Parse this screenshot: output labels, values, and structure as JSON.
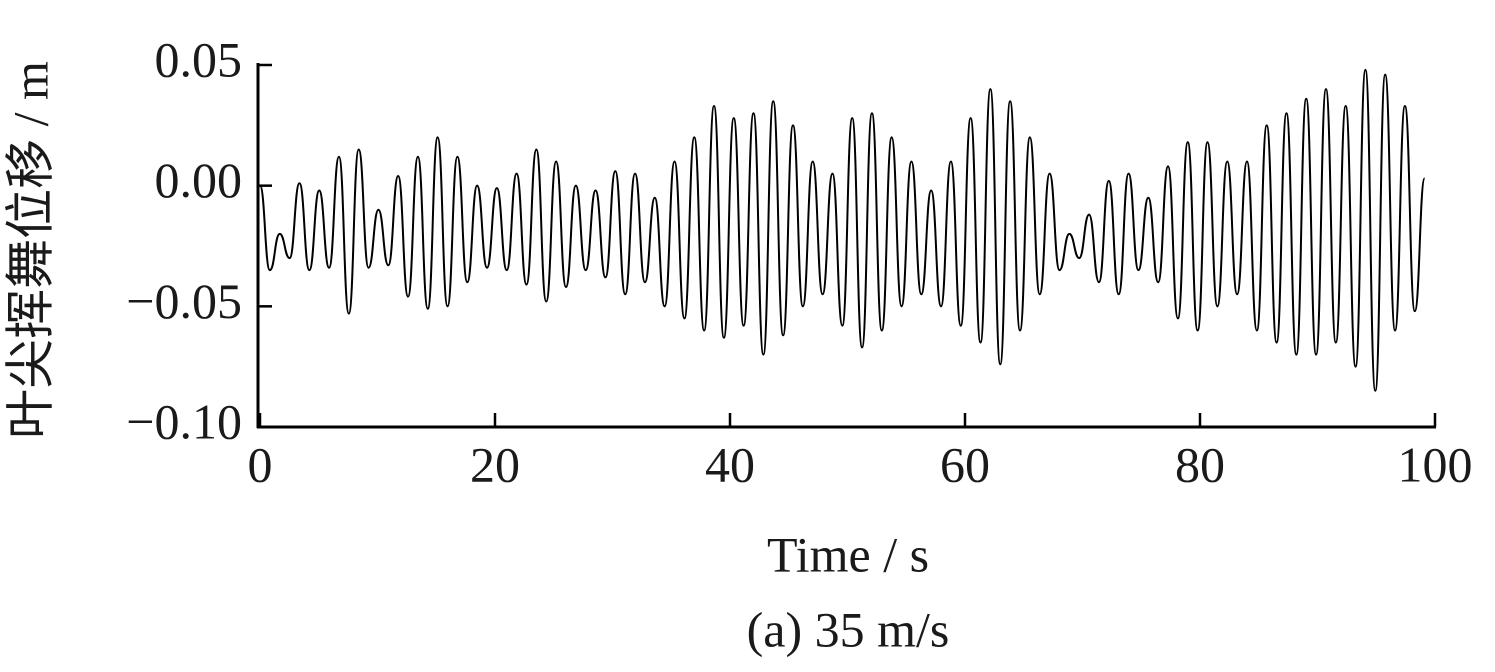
{
  "chart_data": {
    "type": "line",
    "ylabel": "叶尖挥舞位移 / m",
    "xlabel": "Time / s",
    "caption": "(a) 35 m/s",
    "color": "#000000",
    "xlim": [
      0,
      100
    ],
    "xticks": [
      0,
      20,
      40,
      60,
      80,
      100
    ],
    "ylim": [
      -0.1,
      0.05
    ],
    "yticks": [
      {
        "value": -0.1,
        "label": "−0.10"
      },
      {
        "value": -0.05,
        "label": "−0.05"
      },
      {
        "value": 0,
        "label": "0.00"
      },
      0.05
    ],
    "x": [
      0,
      0.84,
      1.68,
      2.52,
      3.36,
      4.2,
      5.04,
      5.88,
      6.72,
      7.56,
      8.4,
      9.24,
      10.08,
      10.92,
      11.76,
      12.6,
      13.44,
      14.28,
      15.12,
      15.96,
      16.8,
      17.64,
      18.48,
      19.32,
      20.16,
      21,
      21.84,
      22.68,
      23.52,
      24.36,
      25.2,
      26.04,
      26.88,
      27.72,
      28.56,
      29.4,
      30.24,
      31.08,
      31.92,
      32.76,
      33.6,
      34.44,
      35.28,
      36.12,
      36.96,
      37.8,
      38.64,
      39.48,
      40.32,
      41.16,
      42,
      42.84,
      43.68,
      44.52,
      45.36,
      46.2,
      47.04,
      47.88,
      48.72,
      49.56,
      50.4,
      51.24,
      52.08,
      52.92,
      53.76,
      54.6,
      55.44,
      56.28,
      57.12,
      57.96,
      58.8,
      59.64,
      60.48,
      61.32,
      62.16,
      63,
      63.84,
      64.68,
      65.52,
      66.36,
      67.2,
      68.04,
      68.88,
      69.72,
      70.56,
      71.4,
      72.24,
      73.08,
      73.92,
      74.76,
      75.6,
      76.44,
      77.28,
      78.12,
      78.96,
      79.8,
      80.64,
      81.48,
      82.32,
      83.16,
      84,
      84.84,
      85.68,
      86.52,
      87.36,
      88.2,
      89.04,
      89.88,
      90.72,
      91.56,
      92.4,
      93.24,
      94.08,
      94.92,
      95.76,
      96.6,
      97.44,
      98.28,
      99.12
    ],
    "values": [
      0,
      -0.035,
      -0.02,
      -0.03,
      0.001,
      -0.035,
      -0.002,
      -0.034,
      0.012,
      -0.053,
      0.015,
      -0.034,
      -0.01,
      -0.033,
      0.004,
      -0.046,
      0.012,
      -0.051,
      0.02,
      -0.05,
      0.012,
      -0.04,
      0,
      -0.034,
      -0.001,
      -0.035,
      0.005,
      -0.041,
      0.015,
      -0.048,
      0.01,
      -0.042,
      0,
      -0.035,
      -0.002,
      -0.038,
      0.006,
      -0.045,
      0.005,
      -0.04,
      -0.005,
      -0.05,
      0.01,
      -0.055,
      0.02,
      -0.06,
      0.033,
      -0.063,
      0.028,
      -0.058,
      0.03,
      -0.07,
      0.035,
      -0.062,
      0.025,
      -0.05,
      0.01,
      -0.045,
      0.005,
      -0.058,
      0.028,
      -0.067,
      0.03,
      -0.06,
      0.02,
      -0.05,
      0.01,
      -0.045,
      -0.002,
      -0.05,
      0.01,
      -0.058,
      0.028,
      -0.065,
      0.04,
      -0.074,
      0.035,
      -0.06,
      0.02,
      -0.045,
      0.005,
      -0.035,
      -0.02,
      -0.03,
      -0.012,
      -0.04,
      0.002,
      -0.045,
      0.005,
      -0.035,
      -0.005,
      -0.04,
      0.008,
      -0.055,
      0.018,
      -0.06,
      0.018,
      -0.05,
      0.01,
      -0.045,
      0.01,
      -0.06,
      0.025,
      -0.065,
      0.03,
      -0.07,
      0.036,
      -0.07,
      0.04,
      -0.065,
      0.033,
      -0.075,
      0.048,
      -0.085,
      0.046,
      -0.06,
      0.033,
      -0.052,
      0.003
    ]
  }
}
